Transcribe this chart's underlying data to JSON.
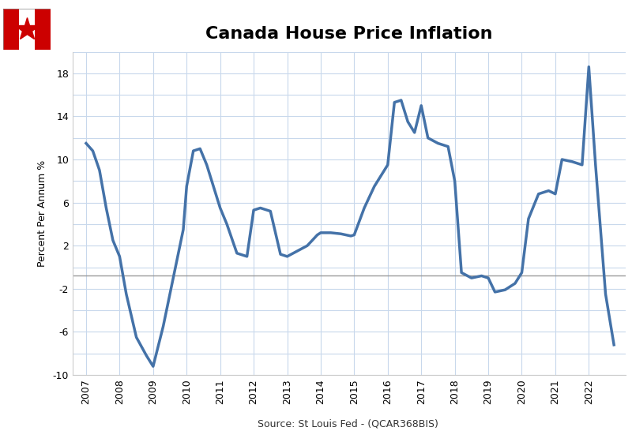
{
  "title": "Canada House Price Inflation",
  "ylabel": "Percent Per Annum %",
  "source_text": "Source: St Louis Fed - (QCAR368BIS)",
  "line_color": "#4472a8",
  "line_width": 2.5,
  "background_color": "#ffffff",
  "grid_color": "#c8d8ec",
  "hline_color": "#999999",
  "hline_y": -0.75,
  "ylim": [
    -10,
    20
  ],
  "yticks": [
    -10,
    -8,
    -6,
    -4,
    -2,
    0,
    2,
    4,
    6,
    8,
    10,
    12,
    14,
    16,
    18,
    20
  ],
  "ytick_labels": [
    "-10",
    "",
    "-6",
    "",
    "-2",
    "",
    "2",
    "",
    "6",
    "",
    "10",
    "",
    "14",
    "",
    "18",
    ""
  ],
  "xlim_start": 2006.6,
  "xlim_end": 2023.1,
  "xtick_years": [
    2007,
    2008,
    2009,
    2010,
    2011,
    2012,
    2013,
    2014,
    2015,
    2016,
    2017,
    2018,
    2019,
    2020,
    2021,
    2022
  ],
  "x": [
    2007.0,
    2007.2,
    2007.4,
    2007.6,
    2007.8,
    2008.0,
    2008.2,
    2008.5,
    2008.8,
    2009.0,
    2009.3,
    2009.6,
    2009.9,
    2010.0,
    2010.2,
    2010.4,
    2010.6,
    2010.8,
    2011.0,
    2011.2,
    2011.5,
    2011.8,
    2012.0,
    2012.2,
    2012.5,
    2012.8,
    2013.0,
    2013.3,
    2013.6,
    2013.9,
    2014.0,
    2014.3,
    2014.6,
    2014.9,
    2015.0,
    2015.3,
    2015.6,
    2015.9,
    2016.0,
    2016.2,
    2016.4,
    2016.6,
    2016.8,
    2017.0,
    2017.2,
    2017.5,
    2017.8,
    2018.0,
    2018.2,
    2018.5,
    2018.8,
    2019.0,
    2019.2,
    2019.5,
    2019.8,
    2020.0,
    2020.2,
    2020.5,
    2020.8,
    2021.0,
    2021.2,
    2021.5,
    2021.8,
    2022.0,
    2022.2,
    2022.5,
    2022.75
  ],
  "y": [
    11.5,
    10.8,
    9.0,
    5.5,
    2.5,
    1.0,
    -2.5,
    -6.5,
    -8.2,
    -9.2,
    -5.5,
    -1.0,
    3.5,
    7.5,
    10.8,
    11.0,
    9.5,
    7.5,
    5.5,
    4.0,
    1.3,
    1.0,
    5.3,
    5.5,
    5.2,
    1.2,
    1.0,
    1.5,
    2.0,
    3.0,
    3.2,
    3.2,
    3.1,
    2.9,
    3.0,
    5.5,
    7.5,
    9.0,
    9.5,
    15.3,
    15.5,
    13.5,
    12.5,
    15.0,
    12.0,
    11.5,
    11.2,
    8.0,
    -0.5,
    -1.0,
    -0.8,
    -1.0,
    -2.3,
    -2.1,
    -1.5,
    -0.5,
    4.5,
    6.8,
    7.1,
    6.8,
    10.0,
    9.8,
    9.5,
    18.6,
    9.5,
    -2.5,
    -7.2
  ]
}
